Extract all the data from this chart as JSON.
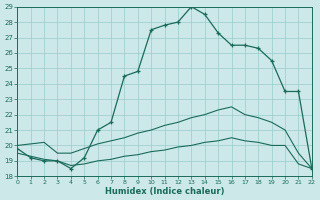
{
  "xlabel": "Humidex (Indice chaleur)",
  "background_color": "#cce8e8",
  "grid_color": "#99cccc",
  "line_color": "#1a6b5a",
  "xlim": [
    0,
    22
  ],
  "ylim": [
    18,
    29
  ],
  "xticks": [
    0,
    1,
    2,
    3,
    4,
    5,
    6,
    7,
    8,
    9,
    10,
    11,
    12,
    13,
    14,
    15,
    16,
    17,
    18,
    19,
    20,
    21,
    22
  ],
  "yticks": [
    18,
    19,
    20,
    21,
    22,
    23,
    24,
    25,
    26,
    27,
    28,
    29
  ],
  "main_x": [
    0,
    1,
    2,
    3,
    4,
    5,
    6,
    7,
    8,
    9,
    10,
    11,
    12,
    13,
    14,
    15,
    16,
    17,
    18,
    19,
    20,
    21,
    22
  ],
  "main_y": [
    19.8,
    19.2,
    19.0,
    19.0,
    18.5,
    19.2,
    21.0,
    21.5,
    24.5,
    24.8,
    27.5,
    27.8,
    28.0,
    29.0,
    28.5,
    27.3,
    26.5,
    26.5,
    26.3,
    25.5,
    23.5,
    23.5,
    18.5
  ],
  "diag1_x": [
    0,
    1,
    2,
    3,
    4,
    5,
    6,
    7,
    8,
    9,
    10,
    11,
    12,
    13,
    14,
    15,
    16,
    17,
    18,
    19,
    20,
    21,
    22
  ],
  "diag1_y": [
    20.0,
    20.1,
    20.2,
    19.5,
    19.5,
    19.8,
    20.1,
    20.3,
    20.5,
    20.8,
    21.0,
    21.3,
    21.5,
    21.8,
    22.0,
    22.3,
    22.5,
    22.0,
    21.8,
    21.5,
    21.0,
    19.5,
    18.5
  ],
  "diag2_x": [
    0,
    1,
    2,
    3,
    4,
    5,
    6,
    7,
    8,
    9,
    10,
    11,
    12,
    13,
    14,
    15,
    16,
    17,
    18,
    19,
    20,
    21,
    22
  ],
  "diag2_y": [
    19.5,
    19.3,
    19.1,
    19.0,
    18.7,
    18.8,
    19.0,
    19.1,
    19.3,
    19.4,
    19.6,
    19.7,
    19.9,
    20.0,
    20.2,
    20.3,
    20.5,
    20.3,
    20.2,
    20.0,
    20.0,
    18.8,
    18.5
  ]
}
